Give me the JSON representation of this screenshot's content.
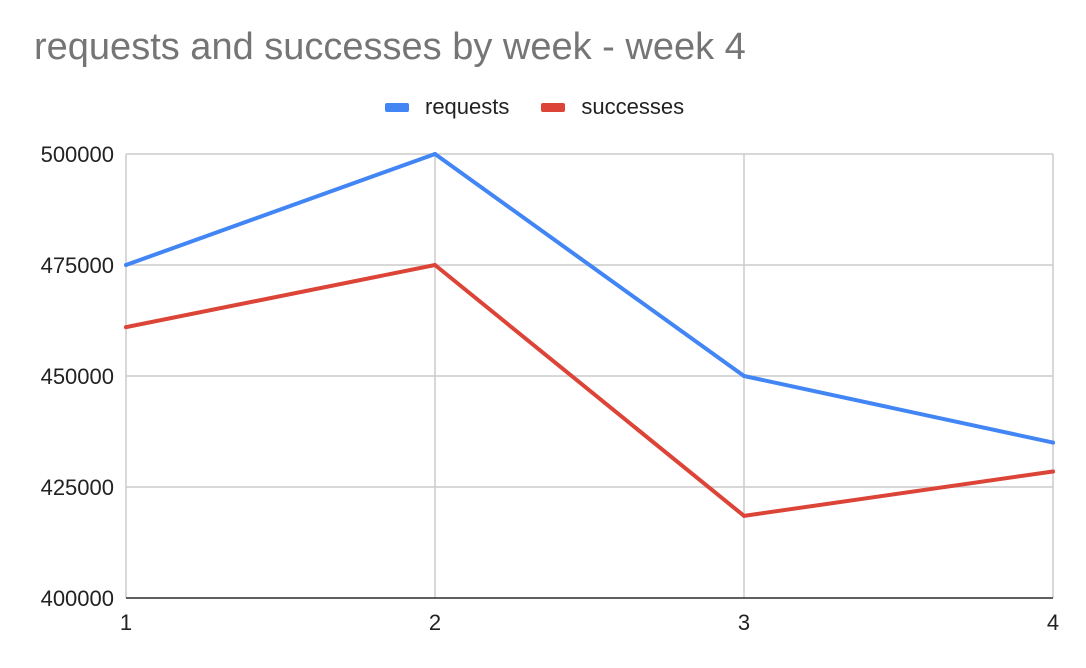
{
  "chart_data": {
    "type": "line",
    "title": "requests and successes by week - week 4",
    "xlabel": "",
    "ylabel": "",
    "x": [
      1,
      2,
      3,
      4
    ],
    "ylim": [
      400000,
      500000
    ],
    "yticks": [
      400000,
      425000,
      450000,
      475000,
      500000
    ],
    "grid": true,
    "legend_position": "top",
    "series": [
      {
        "name": "requests",
        "color": "#4285F4",
        "values": [
          475000,
          500000,
          450000,
          435000
        ]
      },
      {
        "name": "successes",
        "color": "#DB4437",
        "values": [
          461000,
          475000,
          418500,
          428500
        ]
      }
    ]
  }
}
